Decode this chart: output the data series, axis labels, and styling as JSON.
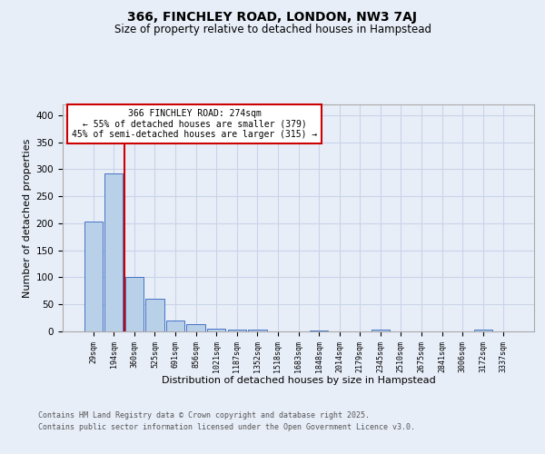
{
  "title1": "366, FINCHLEY ROAD, LONDON, NW3 7AJ",
  "title2": "Size of property relative to detached houses in Hampstead",
  "xlabel": "Distribution of detached houses by size in Hampstead",
  "ylabel": "Number of detached properties",
  "categories": [
    "29sqm",
    "194sqm",
    "360sqm",
    "525sqm",
    "691sqm",
    "856sqm",
    "1021sqm",
    "1187sqm",
    "1352sqm",
    "1518sqm",
    "1683sqm",
    "1848sqm",
    "2014sqm",
    "2179sqm",
    "2345sqm",
    "2510sqm",
    "2675sqm",
    "2841sqm",
    "3006sqm",
    "3172sqm",
    "3337sqm"
  ],
  "values": [
    204,
    293,
    100,
    61,
    21,
    14,
    5,
    4,
    3,
    0,
    0,
    2,
    0,
    0,
    3,
    0,
    0,
    0,
    0,
    3,
    0
  ],
  "bar_color": "#b8d0e8",
  "bar_edge_color": "#4472c4",
  "vline_color": "#cc0000",
  "annotation_text": "366 FINCHLEY ROAD: 274sqm\n← 55% of detached houses are smaller (379)\n45% of semi-detached houses are larger (315) →",
  "annotation_box_color": "#ffffff",
  "annotation_box_edge": "#cc0000",
  "ylim": [
    0,
    420
  ],
  "yticks": [
    0,
    50,
    100,
    150,
    200,
    250,
    300,
    350,
    400
  ],
  "footer1": "Contains HM Land Registry data © Crown copyright and database right 2025.",
  "footer2": "Contains public sector information licensed under the Open Government Licence v3.0.",
  "bg_color": "#e8eef8",
  "grid_color": "#c8d4e8"
}
